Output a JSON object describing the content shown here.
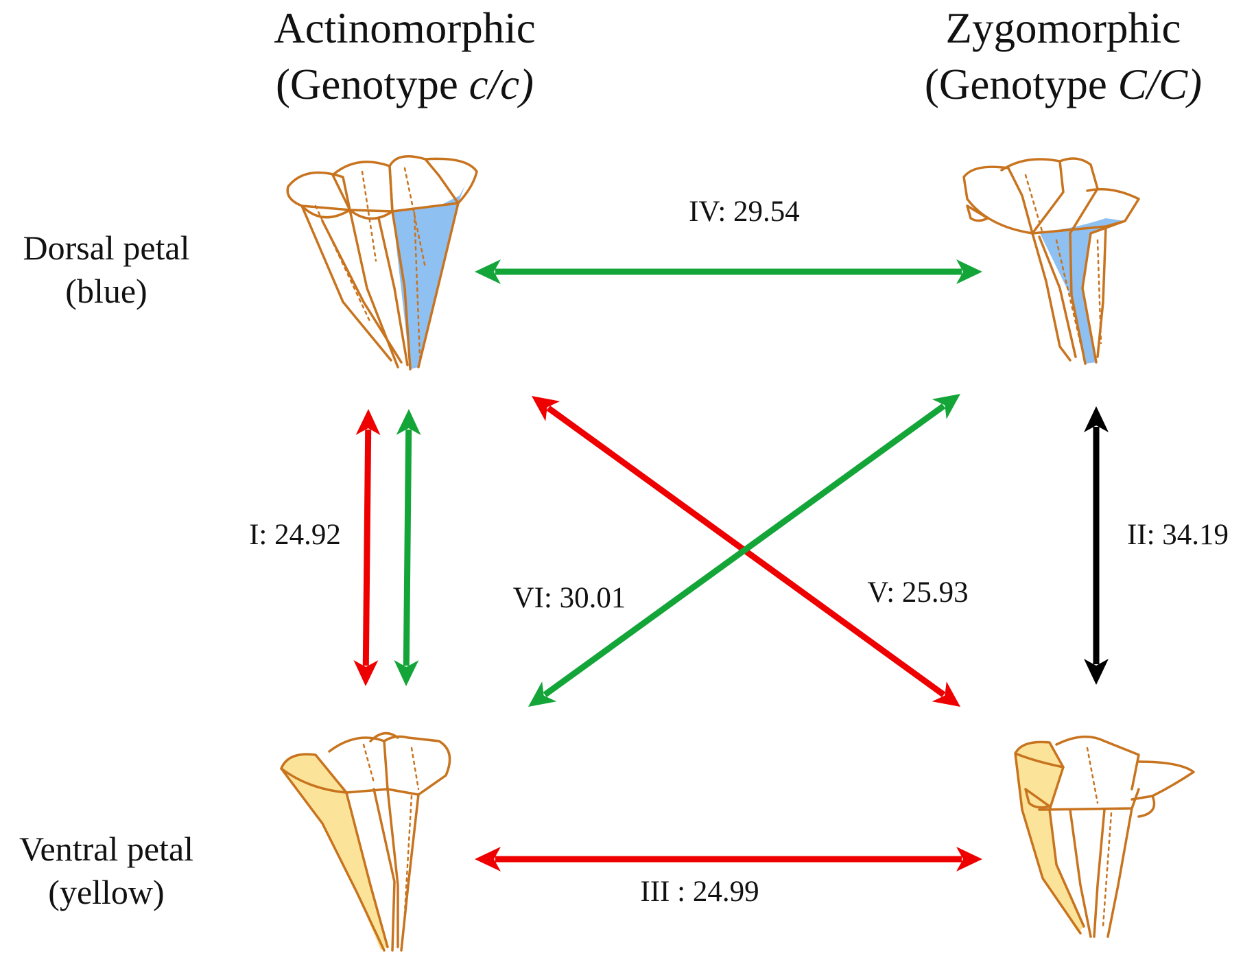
{
  "columns": {
    "left": {
      "title": "Actinomorphic",
      "genotype_prefix": "(Genotype ",
      "genotype": "c/c)"
    },
    "right": {
      "title": "Zygomorphic",
      "genotype_prefix": "(Genotype ",
      "genotype": "C/C)"
    }
  },
  "rows": {
    "top": {
      "line1": "Dorsal petal",
      "line2": "(blue)"
    },
    "bottom": {
      "line1": "Ventral petal",
      "line2": "(yellow)"
    }
  },
  "edges": [
    {
      "id": "I",
      "label": "I: 24.92",
      "color": "#ee0000",
      "color2": "#13a538"
    },
    {
      "id": "II",
      "label": "II: 34.19",
      "color": "#000000"
    },
    {
      "id": "III",
      "label": "III : 24.99",
      "color": "#ee0000"
    },
    {
      "id": "IV",
      "label": "IV: 29.54",
      "color": "#13a538"
    },
    {
      "id": "V",
      "label": "V: 25.93",
      "color": "#ee0000"
    },
    {
      "id": "VI",
      "label": "VI: 30.01",
      "color": "#13a538"
    }
  ],
  "colors": {
    "outline": "#c8731e",
    "dorsal_fill": "#8fc0f2",
    "ventral_fill": "#fbe49a"
  }
}
